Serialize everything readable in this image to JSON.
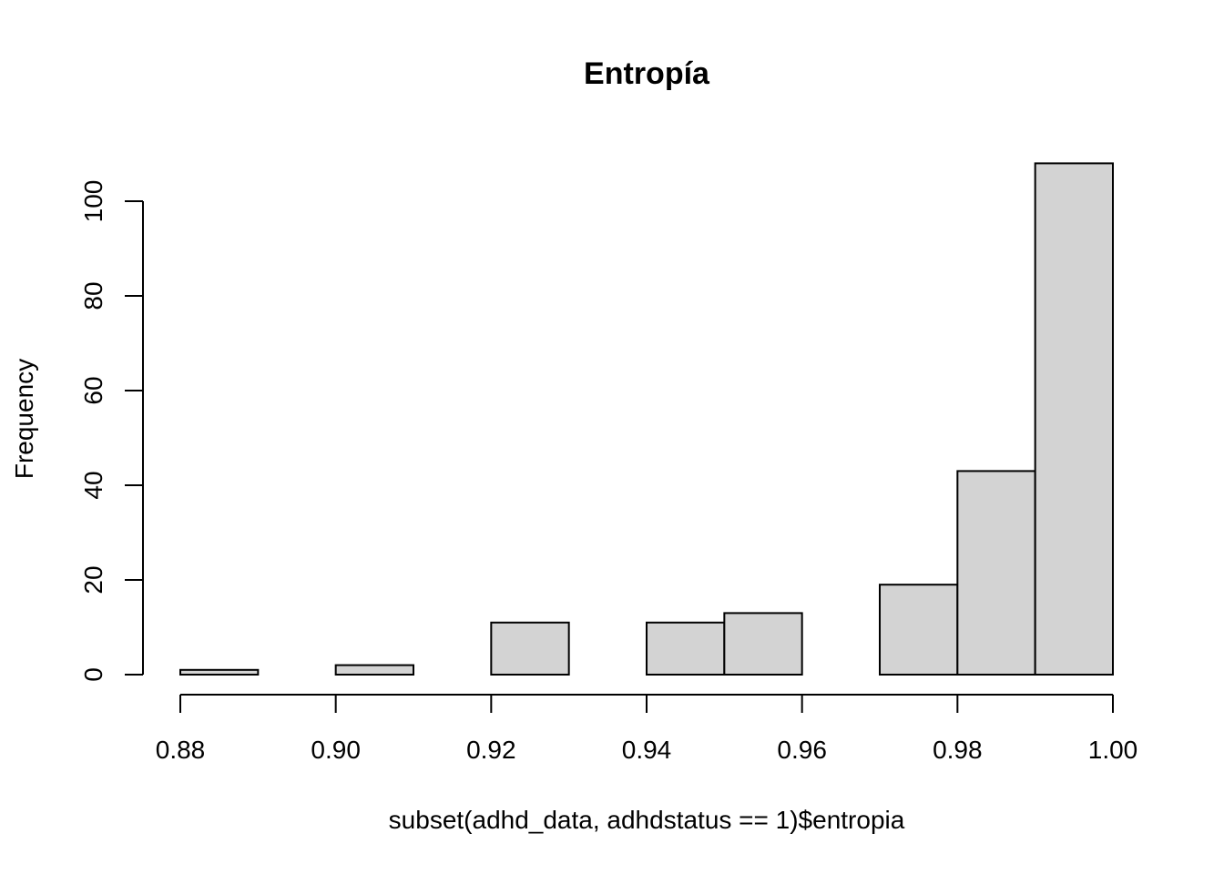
{
  "chart_data": {
    "type": "bar",
    "title": "Entropía",
    "xlabel": "subset(adhd_data, adhdstatus == 1)$entropia",
    "ylabel": "Frequency",
    "bin_edges": [
      0.88,
      0.89,
      0.9,
      0.91,
      0.92,
      0.93,
      0.94,
      0.95,
      0.96,
      0.97,
      0.98,
      0.99,
      1.0
    ],
    "values": [
      1,
      0,
      2,
      0,
      11,
      0,
      11,
      13,
      0,
      19,
      43,
      108
    ],
    "xlim": [
      0.88,
      1.0
    ],
    "ylim": [
      0,
      108
    ],
    "x_ticks": [
      0.88,
      0.9,
      0.92,
      0.94,
      0.96,
      0.98,
      1.0
    ],
    "x_tick_labels": [
      "0.88",
      "0.90",
      "0.92",
      "0.94",
      "0.96",
      "0.98",
      "1.00"
    ],
    "y_ticks": [
      0,
      20,
      40,
      60,
      80,
      100
    ],
    "y_tick_labels": [
      "0",
      "20",
      "40",
      "60",
      "80",
      "100"
    ],
    "grid": false,
    "colors": {
      "bar_fill": "#d3d3d3",
      "bar_stroke": "#000000"
    }
  }
}
